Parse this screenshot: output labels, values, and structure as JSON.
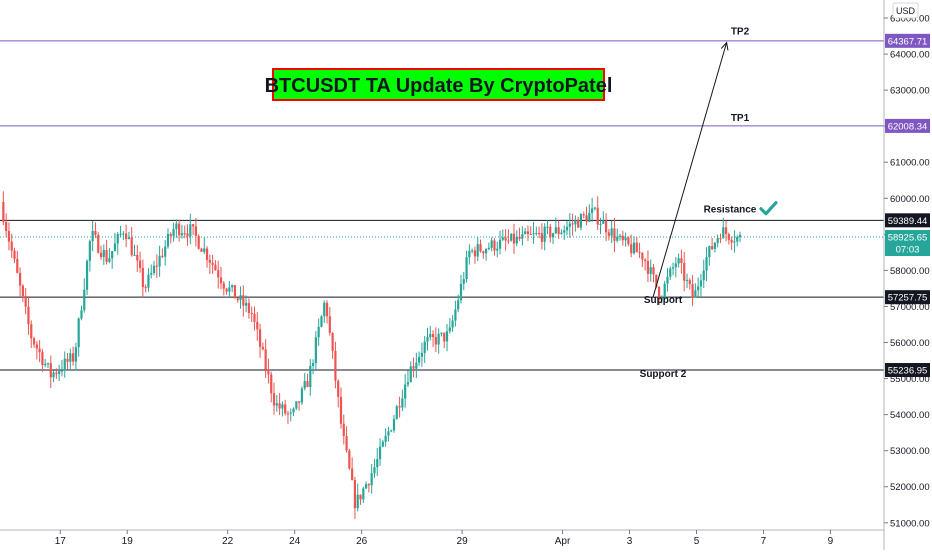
{
  "chart_data": {
    "type": "candlestick",
    "title": "BTCUSDT TA Update By CryptoPatel",
    "currency": "USD",
    "ylim": [
      50800,
      65500
    ],
    "y_ticks": [
      51000,
      52000,
      53000,
      54000,
      55000,
      56000,
      57000,
      58000,
      59000,
      60000,
      61000,
      62000,
      63000,
      64000,
      65000
    ],
    "y_tick_labels": [
      "51000.00",
      "52000.00",
      "53000.00",
      "54000.00",
      "55000.00",
      "56000.00",
      "57000.00",
      "58000.00",
      "59000.00",
      "60000.00",
      "61000.00",
      "62000.00",
      "63000.00",
      "64000.00",
      "65000.00"
    ],
    "x_ticks": [
      {
        "label": "17",
        "day": 17
      },
      {
        "label": "19",
        "day": 19
      },
      {
        "label": "22",
        "day": 22
      },
      {
        "label": "24",
        "day": 24
      },
      {
        "label": "26",
        "day": 26
      },
      {
        "label": "29",
        "day": 29
      },
      {
        "label": "Apr",
        "day": 32
      },
      {
        "label": "3",
        "day": 34
      },
      {
        "label": "5",
        "day": 36
      },
      {
        "label": "7",
        "day": 38
      },
      {
        "label": "9",
        "day": 40
      }
    ],
    "xlim": [
      15.2,
      41.6
    ],
    "price_series": {
      "day": [
        15.3,
        16.2,
        16.8,
        17.5,
        18.0,
        18.5,
        19.0,
        19.6,
        20.5,
        21.0,
        21.5,
        22.0,
        22.8,
        23.5,
        24.0,
        24.5,
        25.0,
        25.5,
        25.9,
        26.5,
        27.0,
        27.5,
        28.0,
        28.7,
        29.3,
        30.0,
        31.0,
        32.0,
        33.0,
        33.8,
        34.5,
        35.0,
        35.5,
        36.0,
        36.3,
        36.8,
        37.3
      ],
      "price": [
        59900,
        56200,
        55100,
        55600,
        59000,
        58300,
        59200,
        57500,
        59200,
        59100,
        58400,
        57600,
        56800,
        54300,
        53900,
        55000,
        57200,
        53500,
        51500,
        52600,
        53800,
        55200,
        56000,
        56200,
        58500,
        58700,
        58900,
        59100,
        59600,
        58800,
        58400,
        57300,
        58300,
        57200,
        58200,
        59100,
        58900
      ]
    },
    "levels": [
      {
        "label": "64367.71",
        "price": 64367.71,
        "color": "#7e57c2"
      },
      {
        "label": "62008.34",
        "price": 62008.34,
        "color": "#7e57c2"
      },
      {
        "label": "59389.44",
        "price": 59389.44,
        "color": "#131722"
      },
      {
        "label": "57257.75",
        "price": 57257.75,
        "color": "#131722"
      },
      {
        "label": "55236.95",
        "price": 55236.95,
        "color": "#131722"
      }
    ],
    "current_price": {
      "label": "58925.65",
      "countdown": "07:03",
      "price": 58925.65,
      "color": "#26a69a"
    },
    "annotations": [
      {
        "text": "TP2",
        "day": 37.3,
        "price": 64550
      },
      {
        "text": "TP1",
        "day": 37.3,
        "price": 62150
      },
      {
        "text": "Resistance",
        "day": 37.0,
        "price": 59600
      },
      {
        "text": "Support",
        "day": 35.0,
        "price": 57100
      },
      {
        "text": "Support 2",
        "day": 35.0,
        "price": 55050
      }
    ],
    "projection_arrow": {
      "from": {
        "day": 34.7,
        "price": 57250
      },
      "to": {
        "day": 36.9,
        "price": 64320
      }
    },
    "colors": {
      "up": "#26a69a",
      "down": "#ef5350",
      "title_bg": "#00ff00",
      "title_border": "#ff0000",
      "check": "#26a69a"
    },
    "grid": false
  }
}
